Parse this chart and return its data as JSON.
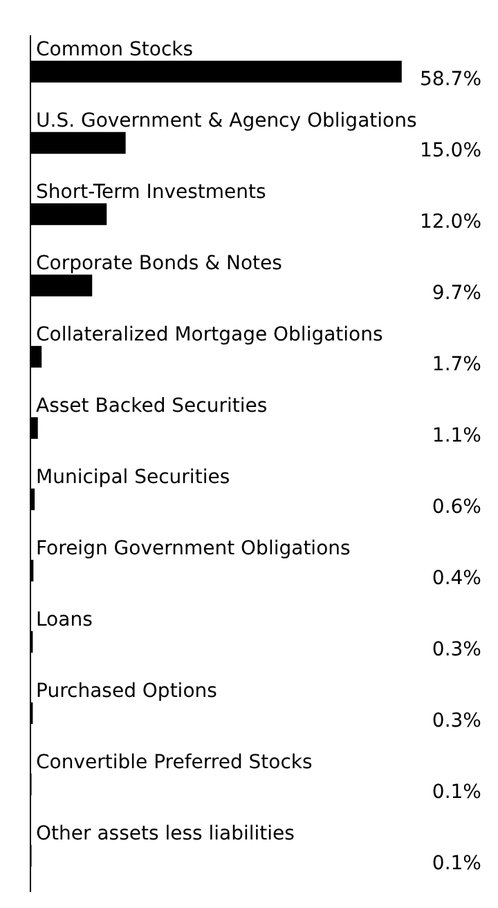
{
  "chart_data": {
    "type": "bar",
    "orientation": "horizontal",
    "categories": [
      "Common Stocks",
      "U.S. Government & Agency Obligations",
      "Short-Term Investments",
      "Corporate Bonds & Notes",
      "Collateralized Mortgage Obligations",
      "Asset Backed Securities",
      "Municipal Securities",
      "Foreign Government Obligations",
      "Loans",
      "Purchased Options",
      "Convertible Preferred Stocks",
      "Other assets less liabilities"
    ],
    "values": [
      58.7,
      15.0,
      12.0,
      9.7,
      1.7,
      1.1,
      0.6,
      0.4,
      0.3,
      0.3,
      0.1,
      0.1
    ],
    "value_labels": [
      "58.7%",
      "15.0%",
      "12.0%",
      "9.7%",
      "1.7%",
      "1.1%",
      "0.6%",
      "0.4%",
      "0.3%",
      "0.3%",
      "0.1%",
      "0.1%"
    ],
    "color": "#000000",
    "grid": false,
    "legend": false
  }
}
